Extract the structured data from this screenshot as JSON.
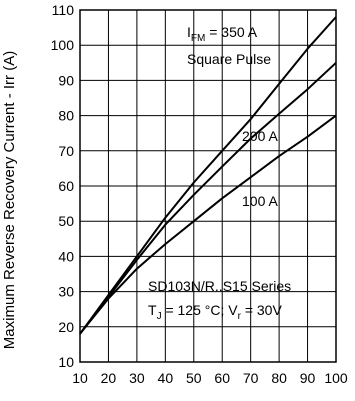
{
  "chart_data": {
    "type": "line",
    "xlabel": "",
    "ylabel": "Maximum Reverse Recovery Current - Irr (A)",
    "xlim": [
      10,
      100
    ],
    "ylim": [
      10,
      110
    ],
    "x_ticks": [
      "10",
      "20",
      "30",
      "40",
      "50",
      "60",
      "70",
      "80",
      "90",
      "100"
    ],
    "y_ticks": [
      "10",
      "20",
      "30",
      "40",
      "50",
      "60",
      "70",
      "80",
      "90",
      "100",
      "110"
    ],
    "grid": true,
    "series": [
      {
        "name": "I_FM = 350 A",
        "x": [
          10,
          20,
          30,
          40,
          50,
          60,
          70,
          80,
          90,
          100
        ],
        "values": [
          18,
          29,
          40,
          51,
          61,
          70,
          79,
          89,
          99,
          108
        ]
      },
      {
        "name": "200 A",
        "x": [
          10,
          20,
          30,
          40,
          50,
          60,
          70,
          80,
          90,
          100
        ],
        "values": [
          18,
          28.5,
          39,
          49,
          57.5,
          65.5,
          73.5,
          80.5,
          87.5,
          95
        ]
      },
      {
        "name": "100 A",
        "x": [
          10,
          20,
          30,
          40,
          50,
          60,
          70,
          80,
          90,
          100
        ],
        "values": [
          18,
          28,
          36.5,
          43.5,
          50,
          56.5,
          62.5,
          68.5,
          74,
          80
        ]
      }
    ],
    "annotations": {
      "ifm_prefix": "I",
      "ifm_sub": "FM",
      "ifm_value": " = 350 A",
      "square_pulse": "Square Pulse",
      "label_200": "200 A",
      "label_100": "100 A",
      "series_name": "SD103N/R..S15 Series",
      "tj_prefix": "T",
      "tj_sub": "J",
      "tj_value": " = 125 °C; V",
      "vr_sub": "r",
      "vr_value": " = 30V"
    }
  }
}
